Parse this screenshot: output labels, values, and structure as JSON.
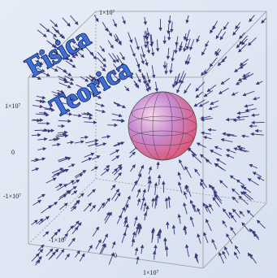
{
  "title": [
    "Fisica",
    "Teorica"
  ],
  "axis_labels": {
    "top": "1×10⁷",
    "left_top": "1×10⁷",
    "left_zero": "0",
    "left_bottom": "-1×10⁷",
    "bottom_left": "-1×10⁷",
    "bottom_zero": "0",
    "bottom_right": "1×10⁷"
  }
}
